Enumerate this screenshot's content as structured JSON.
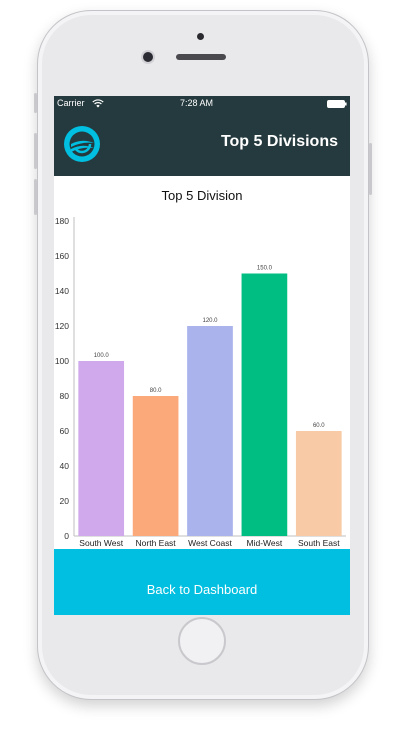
{
  "status_bar": {
    "carrier": "Carrier",
    "time": "7:28 AM"
  },
  "nav": {
    "title": "Top 5 Divisions"
  },
  "footer": {
    "back_label": "Back to Dashboard"
  },
  "colors": {
    "nav_bg": "#253a3e",
    "accent": "#00bfe0"
  },
  "chart_data": {
    "type": "bar",
    "title": "Top 5 Division",
    "categories": [
      "South West",
      "North East",
      "West Coast",
      "Mid-West",
      "South East"
    ],
    "values": [
      100.0,
      80.0,
      120.0,
      150.0,
      60.0
    ],
    "value_labels": [
      "100.0",
      "80.0",
      "120.0",
      "150.0",
      "60.0"
    ],
    "colors": [
      "#cfa9ec",
      "#fba97a",
      "#aab3ec",
      "#00be82",
      "#f8cba6"
    ],
    "ylim": [
      0,
      180
    ],
    "yticks": [
      "0",
      "20",
      "40",
      "60",
      "80",
      "100",
      "120",
      "140",
      "160",
      "180"
    ],
    "grid": false
  }
}
